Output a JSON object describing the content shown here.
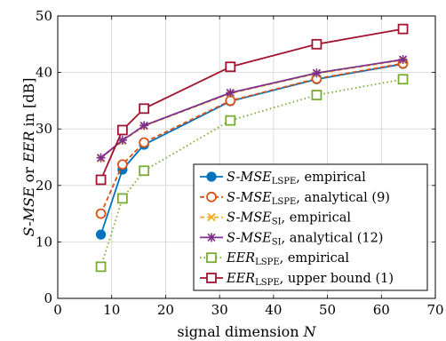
{
  "chart_data": {
    "type": "line",
    "xlabel": {
      "pre": "signal dimension ",
      "var": "N"
    },
    "ylabel": {
      "var1": "S-MSE",
      "mid": " or ",
      "var2": "EER",
      "post": " in [dB]"
    },
    "xlim": [
      0,
      70
    ],
    "ylim": [
      0,
      50
    ],
    "xticks": [
      "0",
      "10",
      "20",
      "30",
      "40",
      "50",
      "60",
      "70"
    ],
    "yticks": [
      "0",
      "10",
      "20",
      "30",
      "40",
      "50"
    ],
    "xtick_values": [
      0,
      10,
      20,
      30,
      40,
      50,
      60,
      70
    ],
    "ytick_values": [
      0,
      10,
      20,
      30,
      40,
      50
    ],
    "grid": true,
    "legend_position": "bottom-right",
    "x": [
      8,
      12,
      16,
      32,
      48,
      64
    ],
    "series": [
      {
        "name": "S-MSE_LSPE, empirical",
        "name_main": "S-MSE",
        "name_sub": "LSPE",
        "name_rest": ", empirical",
        "values": [
          11.3,
          22.8,
          27.2,
          34.9,
          38.8,
          41.5
        ],
        "color": "#0072bd",
        "marker": "circle",
        "dash": "solid"
      },
      {
        "name": "S-MSE_LSPE, analytical (9)",
        "name_main": "S-MSE",
        "name_sub": "LSPE",
        "name_rest": ", analytical (9)",
        "values": [
          15.0,
          23.7,
          27.6,
          35.0,
          38.9,
          41.6
        ],
        "color": "#d95319",
        "marker": "circle-open",
        "dash": "dashed"
      },
      {
        "name": "S-MSE_SI, empirical",
        "name_main": "S-MSE",
        "name_sub": "SI",
        "name_rest": ", empirical",
        "values": [
          24.8,
          27.9,
          30.5,
          36.3,
          39.8,
          42.2
        ],
        "color": "#edb120",
        "marker": "x",
        "dash": "dashed"
      },
      {
        "name": "S-MSE_SI, analytical (12)",
        "name_main": "S-MSE",
        "name_sub": "SI",
        "name_rest": ", analytical (12)",
        "values": [
          24.9,
          28.0,
          30.6,
          36.4,
          39.9,
          42.3
        ],
        "color": "#7e2f8e",
        "marker": "star",
        "dash": "solid"
      },
      {
        "name": "EER_LSPE, empirical",
        "name_main": "EER",
        "name_sub": "LSPE",
        "name_rest": ", empirical",
        "values": [
          5.6,
          17.7,
          22.6,
          31.5,
          36.0,
          38.8
        ],
        "color": "#77ac30",
        "marker": "square-open",
        "dash": "dotted"
      },
      {
        "name": "EER_LSPE, upper bound (1)",
        "name_main": "EER",
        "name_sub": "LSPE",
        "name_rest": ", upper bound (1)",
        "values": [
          21.0,
          29.8,
          33.6,
          41.0,
          45.0,
          47.7
        ],
        "color": "#a2142f",
        "marker": "square-open",
        "dash": "solid"
      }
    ]
  }
}
